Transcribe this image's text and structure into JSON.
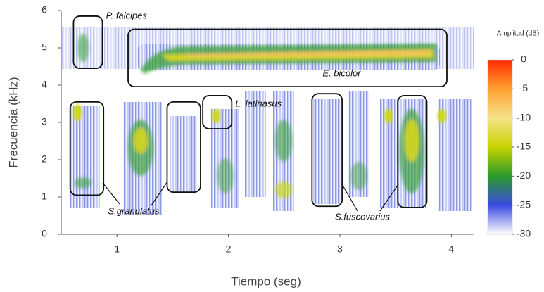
{
  "chart_data": {
    "type": "spectrogram",
    "xlabel": "Tiempo (seg)",
    "ylabel": "Frecuencia (kHz)",
    "xlim": [
      0.5,
      4.2
    ],
    "ylim": [
      0,
      6
    ],
    "xticks": [
      1,
      2,
      3,
      4
    ],
    "yticks": [
      0,
      1,
      2,
      3,
      4,
      5,
      6
    ],
    "colorbar": {
      "label": "Amplitud (dB)",
      "lim": [
        -30,
        0
      ],
      "ticks": [
        0,
        -5,
        -10,
        -15,
        -20,
        -25,
        -30
      ],
      "colormap": [
        "#ff2a00",
        "#ffa030",
        "#f4e28a",
        "#c8d400",
        "#2a9a2a",
        "#3a4ae0",
        "#ffffff"
      ]
    },
    "annotations": [
      {
        "text": "P. falcipes",
        "boxes": [
          {
            "x": [
              0.61,
              0.87
            ],
            "y": [
              4.45,
              5.85
            ]
          }
        ]
      },
      {
        "text": "E. bicolor",
        "boxes": [
          {
            "x": [
              1.1,
              3.96
            ],
            "y": [
              3.96,
              5.5
            ]
          }
        ]
      },
      {
        "text": "L. latinasus",
        "boxes": [
          {
            "x": [
              1.77,
              2.03
            ],
            "y": [
              2.83,
              3.72
            ]
          }
        ]
      },
      {
        "text": "S.granulatus",
        "boxes": [
          {
            "x": [
              0.58,
              0.88
            ],
            "y": [
              1.05,
              3.55
            ]
          },
          {
            "x": [
              1.45,
              1.75
            ],
            "y": [
              1.13,
              3.55
            ]
          }
        ]
      },
      {
        "text": "S.fuscovarius",
        "boxes": [
          {
            "x": [
              2.75,
              3.02
            ],
            "y": [
              0.75,
              3.77
            ]
          },
          {
            "x": [
              3.52,
              3.78
            ],
            "y": [
              0.72,
              3.72
            ]
          }
        ]
      }
    ]
  }
}
